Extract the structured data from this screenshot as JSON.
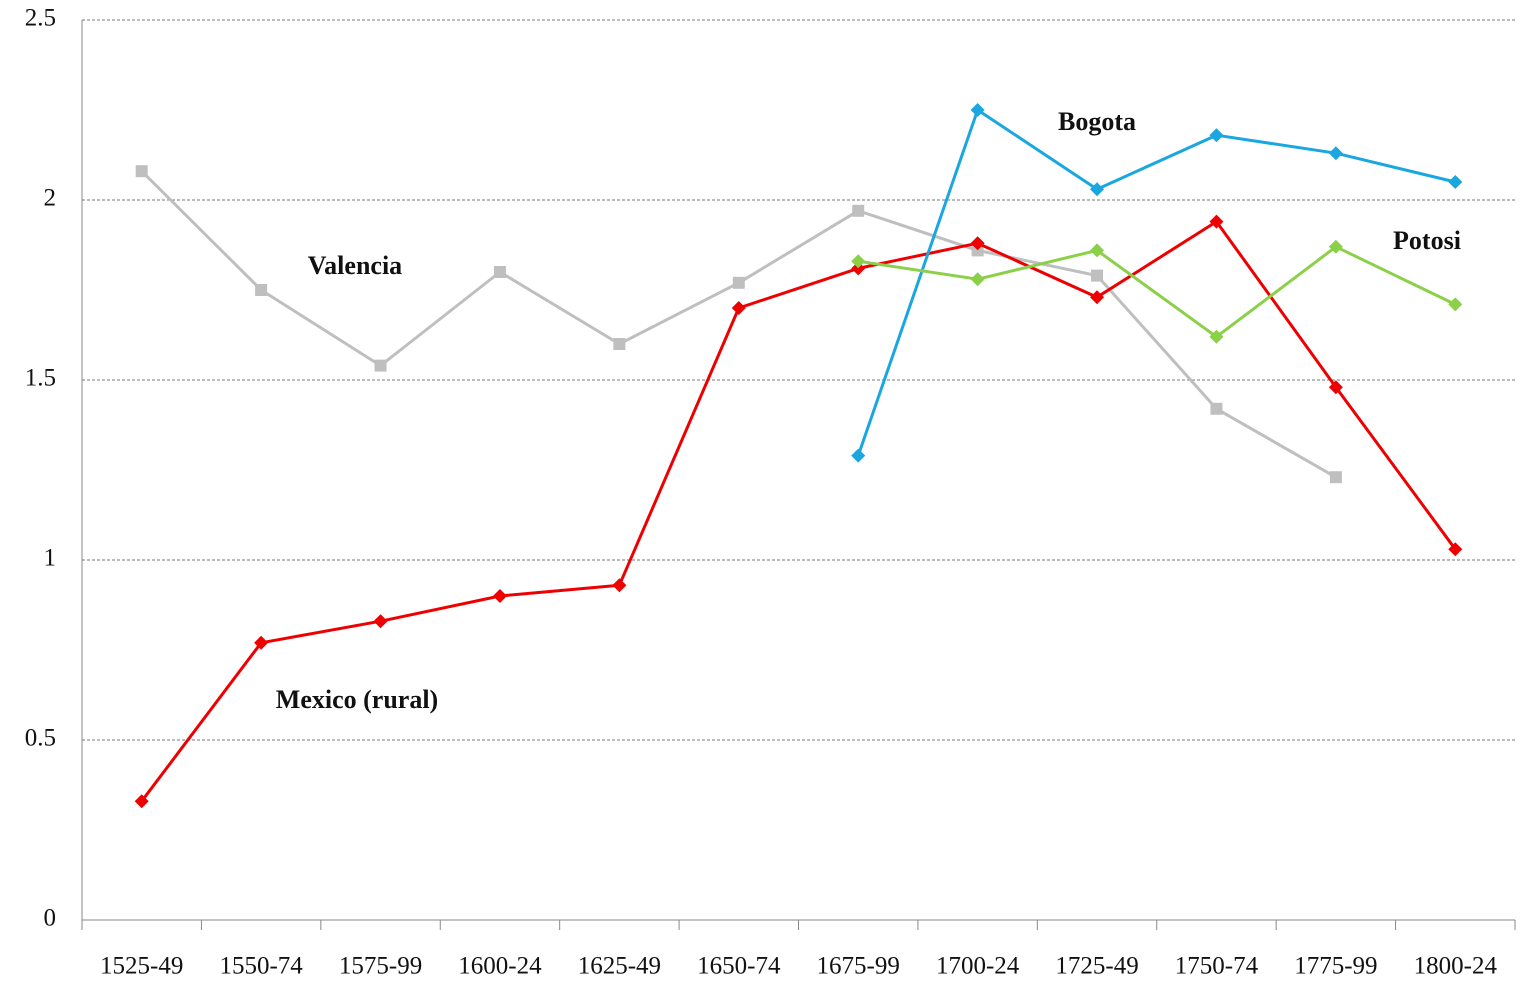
{
  "chart_data": {
    "type": "line",
    "categories": [
      "1525-49",
      "1550-74",
      "1575-99",
      "1600-24",
      "1625-49",
      "1650-74",
      "1675-99",
      "1700-24",
      "1725-49",
      "1750-74",
      "1775-99",
      "1800-24"
    ],
    "series": [
      {
        "name": "Valencia",
        "color": "#bfbfbf",
        "marker": "square",
        "values": [
          2.08,
          1.75,
          1.54,
          1.8,
          1.6,
          1.77,
          1.97,
          1.86,
          1.79,
          1.42,
          1.23,
          null
        ]
      },
      {
        "name": "Mexico (rural)",
        "color": "#ee0000",
        "marker": "diamond",
        "values": [
          0.33,
          0.77,
          0.83,
          0.9,
          0.93,
          1.7,
          1.81,
          1.88,
          1.73,
          1.94,
          1.48,
          1.03
        ]
      },
      {
        "name": "Bogota",
        "color": "#1aa7e0",
        "marker": "diamond",
        "values": [
          null,
          null,
          null,
          null,
          null,
          null,
          1.29,
          2.25,
          2.03,
          2.18,
          2.13,
          2.05
        ]
      },
      {
        "name": "Potosi",
        "color": "#8cd04a",
        "marker": "diamond",
        "values": [
          null,
          null,
          null,
          null,
          null,
          null,
          1.83,
          1.78,
          1.86,
          1.62,
          1.87,
          1.71
        ]
      }
    ],
    "ylim": [
      0,
      2.5
    ],
    "yticks": [
      0,
      0.5,
      1,
      1.5,
      2,
      2.5
    ],
    "grid": true
  }
}
